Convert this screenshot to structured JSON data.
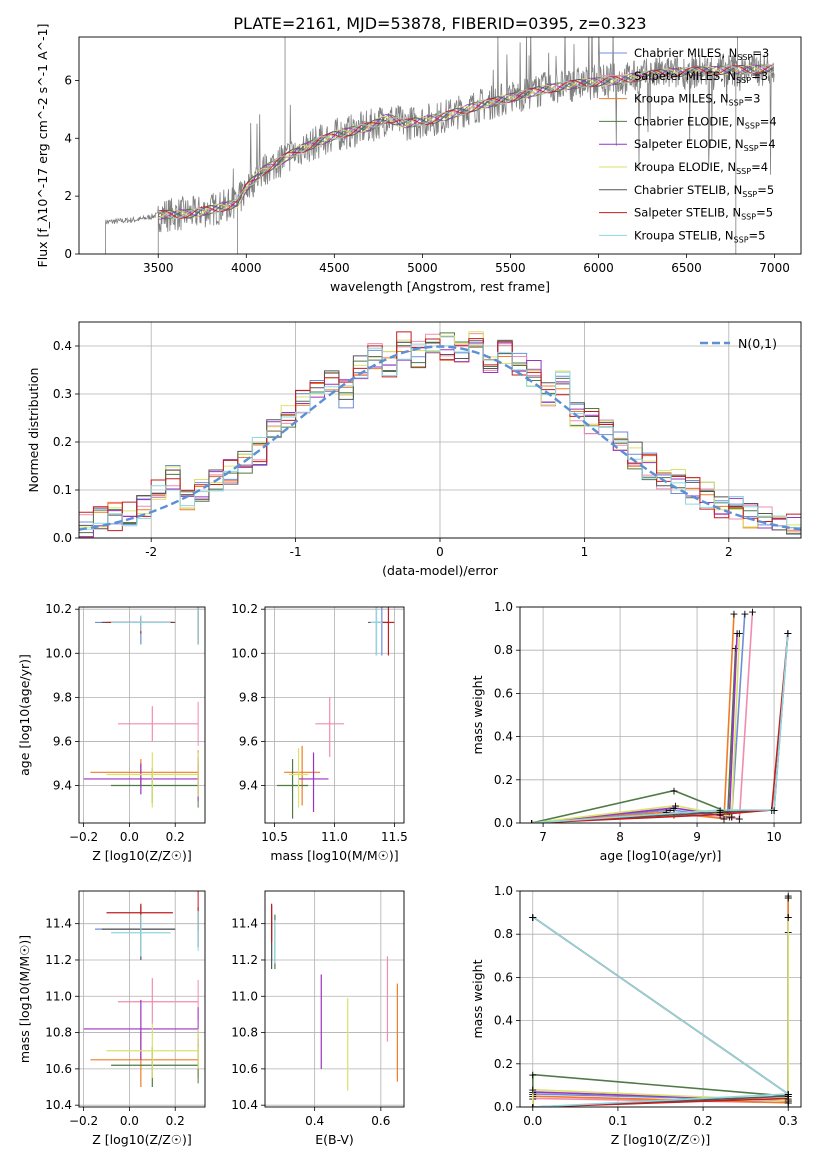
{
  "figure_title": "PLATE=2161, MJD=53878, FIBERID=0395, z=0.323",
  "colors": {
    "Chabrier MILES": "#6f8ed8",
    "Salpeter MILES": "#f08caf",
    "Kroupa MILES": "#f07b27",
    "Chabrier ELODIE": "#4f7a45",
    "Salpeter ELODIE": "#9a32c2",
    "Kroupa ELODIE": "#d9e26a",
    "Chabrier STELIB": "#555555",
    "Salpeter STELIB": "#c11e1e",
    "Kroupa STELIB": "#8fd6df",
    "data_gray": "#808080"
  },
  "legend_spectrum": [
    "Chabrier MILES, N_SSP=3",
    "Salpeter MILES, N_SSP=3",
    "Kroupa MILES, N_SSP=3",
    "Chabrier ELODIE, N_SSP=4",
    "Salpeter ELODIE, N_SSP=4",
    "Kroupa ELODIE, N_SSP=4",
    "Chabrier STELIB, N_SSP=5",
    "Salpeter STELIB, N_SSP=5",
    "Kroupa STELIB, N_SSP=5"
  ],
  "chart_data": [
    {
      "id": "spectrum",
      "type": "line",
      "xlabel": "wavelength [Angstrom, rest frame]",
      "ylabel": "Flux [f_λ10^-17 erg cm^-2 s^-1 A^-1]",
      "xlim": [
        3050,
        7150
      ],
      "ylim": [
        0,
        7.5
      ],
      "xticks": [
        3500,
        4000,
        4500,
        5000,
        5500,
        6000,
        6500,
        7000
      ],
      "yticks": [
        0,
        2,
        4,
        6
      ],
      "continuum": {
        "x": [
          3200,
          3400,
          3500,
          3700,
          3850,
          3950,
          4000,
          4100,
          4300,
          4500,
          4700,
          4800,
          4900,
          5100,
          5300,
          5500,
          5700,
          5900,
          6100,
          6300,
          6500,
          6700,
          7000
        ],
        "y": [
          1.1,
          1.2,
          1.35,
          1.4,
          1.6,
          1.75,
          2.3,
          2.9,
          3.6,
          4.1,
          4.4,
          4.7,
          4.5,
          4.7,
          5.1,
          5.4,
          5.7,
          5.9,
          6.0,
          6.2,
          6.3,
          6.35,
          6.4
        ]
      },
      "grid": false,
      "legend_position": "top-right"
    },
    {
      "id": "residual-histogram",
      "type": "step",
      "xlabel": "(data-model)/error",
      "ylabel": "Normed distribution",
      "xlim": [
        -2.5,
        2.5
      ],
      "ylim": [
        0,
        0.45
      ],
      "xticks": [
        -2,
        -1,
        0,
        1,
        2
      ],
      "yticks": [
        0.0,
        0.1,
        0.2,
        0.3,
        0.4
      ],
      "bin_edges": [
        -2.5,
        -2.4,
        -2.3,
        -2.2,
        -2.1,
        -2.0,
        -1.9,
        -1.8,
        -1.7,
        -1.6,
        -1.5,
        -1.4,
        -1.3,
        -1.2,
        -1.1,
        -1.0,
        -0.9,
        -0.8,
        -0.7,
        -0.6,
        -0.5,
        -0.4,
        -0.3,
        -0.2,
        -0.1,
        0.0,
        0.1,
        0.2,
        0.3,
        0.4,
        0.5,
        0.6,
        0.7,
        0.8,
        0.9,
        1.0,
        1.1,
        1.2,
        1.3,
        1.4,
        1.5,
        1.6,
        1.7,
        1.8,
        1.9,
        2.0,
        2.1,
        2.2,
        2.3,
        2.4,
        2.5
      ],
      "base_density": [
        0.03,
        0.04,
        0.045,
        0.05,
        0.06,
        0.1,
        0.13,
        0.08,
        0.1,
        0.12,
        0.14,
        0.16,
        0.18,
        0.22,
        0.25,
        0.28,
        0.3,
        0.33,
        0.3,
        0.35,
        0.38,
        0.36,
        0.4,
        0.38,
        0.41,
        0.4,
        0.38,
        0.4,
        0.37,
        0.39,
        0.36,
        0.34,
        0.3,
        0.32,
        0.26,
        0.24,
        0.22,
        0.2,
        0.17,
        0.15,
        0.13,
        0.12,
        0.1,
        0.09,
        0.07,
        0.06,
        0.05,
        0.04,
        0.03,
        0.03
      ],
      "gaussian_label": "N(0,1)",
      "grid": true,
      "legend_position": "top-right"
    },
    {
      "id": "age-vs-Z",
      "type": "errorbar",
      "xlabel": "Z [log10(Z/Z☉)]",
      "ylabel": "age [log10(age/yr)]",
      "xlim": [
        -0.22,
        0.33
      ],
      "ylim": [
        9.23,
        10.21
      ],
      "xticks": [
        -0.2,
        0.0,
        0.2
      ],
      "xtick_labels": [
        "−0.2",
        "0.0",
        "0.2"
      ],
      "yticks": [
        9.4,
        9.6,
        9.8,
        10.0,
        10.2
      ],
      "grid": true
    },
    {
      "id": "age-vs-mass",
      "type": "errorbar",
      "xlabel": "mass [log10(M/M☉)]",
      "ylabel": "",
      "xlim": [
        10.42,
        11.58
      ],
      "ylim": [
        9.23,
        10.21
      ],
      "xticks": [
        10.5,
        11.0,
        11.5
      ],
      "yticks": [
        9.4,
        9.6,
        9.8,
        10.0,
        10.2
      ],
      "grid": true
    },
    {
      "id": "massweight-vs-age",
      "type": "line",
      "xlabel": "age [log10(age/yr)]",
      "ylabel": "mass weight",
      "xlim": [
        6.7,
        10.35
      ],
      "ylim": [
        0.0,
        1.0
      ],
      "xticks": [
        7,
        8,
        9,
        10
      ],
      "yticks": [
        0.0,
        0.2,
        0.4,
        0.6,
        0.8,
        1.0
      ],
      "grid": true
    },
    {
      "id": "mass-vs-Z",
      "type": "errorbar",
      "xlabel": "Z [log10(Z/Z☉)]",
      "ylabel": "mass [log10(M/M☉)]",
      "xlim": [
        -0.22,
        0.33
      ],
      "ylim": [
        10.39,
        11.58
      ],
      "xticks": [
        -0.2,
        0.0,
        0.2
      ],
      "xtick_labels": [
        "−0.2",
        "0.0",
        "0.2"
      ],
      "yticks": [
        10.4,
        10.6,
        10.8,
        11.0,
        11.2,
        11.4
      ],
      "grid": true
    },
    {
      "id": "mass-vs-EBV",
      "type": "errorbar",
      "xlabel": "E(B-V)",
      "ylabel": "",
      "xlim": [
        0.25,
        0.67
      ],
      "ylim": [
        10.39,
        11.58
      ],
      "xticks": [
        0.4,
        0.6
      ],
      "yticks": [
        10.4,
        10.6,
        10.8,
        11.0,
        11.2,
        11.4
      ],
      "grid": true
    },
    {
      "id": "massweight-vs-Z",
      "type": "line",
      "xlabel": "Z [log10(Z/Z☉)]",
      "ylabel": "mass weight",
      "xlim": [
        -0.015,
        0.315
      ],
      "ylim": [
        0.0,
        1.0
      ],
      "xticks": [
        0.0,
        0.1,
        0.2,
        0.3
      ],
      "yticks": [
        0.0,
        0.2,
        0.4,
        0.6,
        0.8,
        1.0
      ],
      "grid": true
    }
  ],
  "fits": [
    {
      "model": "Chabrier MILES",
      "Z": [
        0.05,
        -0.15,
        0.2
      ],
      "age": [
        10.14,
        10.04,
        10.16
      ],
      "mass": [
        11.37,
        11.33,
        11.43
      ],
      "mass_age_err": [
        11.34,
        11.45
      ],
      "ebv": 0.27,
      "ebv_mass": [
        11.33,
        11.2,
        11.45
      ]
    },
    {
      "model": "Salpeter MILES",
      "Z": [
        0.1,
        -0.05,
        0.3
      ],
      "age": [
        9.68,
        9.6,
        9.76
      ],
      "mass": [
        10.97,
        10.85,
        11.1
      ],
      "mass_age_err": [
        10.84,
        11.08
      ],
      "ebv": 0.62,
      "ebv_mass": [
        10.97,
        10.75,
        11.22
      ]
    },
    {
      "model": "Kroupa MILES",
      "Z": [
        0.05,
        -0.17,
        0.3
      ],
      "age": [
        9.46,
        9.4,
        9.52
      ],
      "mass": [
        10.65,
        10.5,
        10.8
      ],
      "mass_age_err": [
        10.58,
        10.88
      ],
      "ebv": 0.65,
      "ebv_mass": [
        10.8,
        10.53,
        11.07
      ]
    },
    {
      "model": "Chabrier ELODIE",
      "Z": [
        0.1,
        -0.08,
        0.3
      ],
      "age": [
        9.4,
        9.32,
        9.48
      ],
      "mass": [
        10.62,
        10.5,
        10.72
      ],
      "mass_age_err": [
        10.52,
        10.78
      ],
      "ebv": 0.28,
      "ebv_mass": [
        11.33,
        11.15,
        11.45
      ]
    },
    {
      "model": "Salpeter ELODIE",
      "Z": [
        0.05,
        -0.2,
        0.3
      ],
      "age": [
        9.43,
        9.36,
        9.5
      ],
      "mass": [
        10.82,
        10.65,
        10.98
      ],
      "mass_age_err": [
        10.7,
        10.95
      ],
      "ebv": 0.42,
      "ebv_mass": [
        10.85,
        10.6,
        11.12
      ]
    },
    {
      "model": "Kroupa ELODIE",
      "Z": [
        0.1,
        -0.1,
        0.3
      ],
      "age": [
        9.45,
        9.3,
        9.55
      ],
      "mass": [
        10.7,
        10.55,
        10.85
      ],
      "mass_age_err": [
        10.62,
        10.78
      ],
      "ebv": 0.5,
      "ebv_mass": [
        10.75,
        10.48,
        10.99
      ]
    },
    {
      "model": "Chabrier STELIB",
      "Z": [
        0.05,
        -0.12,
        0.2
      ],
      "age": [
        10.14,
        10.1,
        10.17
      ],
      "mass": [
        11.37,
        11.2,
        11.5
      ],
      "mass_age_err": [
        11.28,
        11.42
      ],
      "ebv": 0.27,
      "ebv_mass": [
        11.35,
        11.15,
        11.5
      ]
    },
    {
      "model": "Salpeter STELIB",
      "Z": [
        0.05,
        -0.1,
        0.19
      ],
      "age": [
        10.14,
        10.09,
        10.16
      ],
      "mass": [
        11.46,
        11.38,
        11.51
      ],
      "mass_age_err": [
        11.4,
        11.5
      ],
      "ebv": 0.27,
      "ebv_mass": [
        11.45,
        11.3,
        11.51
      ]
    },
    {
      "model": "Kroupa STELIB",
      "Z": [
        0.05,
        -0.08,
        0.18
      ],
      "age": [
        10.14,
        10.1,
        10.17
      ],
      "mass": [
        11.35,
        11.22,
        11.45
      ],
      "mass_age_err": [
        11.3,
        11.4
      ],
      "ebv": 0.28,
      "ebv_mass": [
        11.3,
        11.18,
        11.42
      ]
    }
  ],
  "mass_weight_paths": [
    {
      "model": "Chabrier MILES",
      "age": [
        6.85,
        8.65,
        9.45,
        9.62
      ],
      "Z": [
        0,
        0,
        0.3,
        0.3
      ],
      "w": [
        0.0,
        0.06,
        0.03,
        0.97
      ]
    },
    {
      "model": "Salpeter MILES",
      "age": [
        6.85,
        8.7,
        9.55,
        9.72
      ],
      "Z": [
        0,
        0,
        0.3,
        0.3
      ],
      "w": [
        0.0,
        0.04,
        0.02,
        0.98
      ]
    },
    {
      "model": "Kroupa MILES",
      "age": [
        6.85,
        8.6,
        9.35,
        9.48
      ],
      "Z": [
        0,
        0,
        0.3,
        0.3
      ],
      "w": [
        0.0,
        0.05,
        0.02,
        0.97
      ]
    },
    {
      "model": "Chabrier ELODIE",
      "age": [
        6.85,
        8.7,
        9.4,
        9.5
      ],
      "Z": [
        0,
        0,
        0.3,
        0.3
      ],
      "w": [
        0.0,
        0.15,
        0.05,
        0.81
      ]
    },
    {
      "model": "Salpeter ELODIE",
      "age": [
        6.85,
        8.7,
        9.42,
        9.52
      ],
      "Z": [
        0,
        0,
        0.3,
        0.3
      ],
      "w": [
        0.0,
        0.07,
        0.03,
        0.88
      ]
    },
    {
      "model": "Kroupa ELODIE",
      "age": [
        6.85,
        8.72,
        9.45,
        9.55
      ],
      "Z": [
        0,
        0,
        0.3,
        0.3
      ],
      "w": [
        0.0,
        0.08,
        0.03,
        0.88
      ]
    },
    {
      "model": "Chabrier STELIB",
      "age": [
        6.85,
        9.3,
        10.0,
        10.18
      ],
      "Z": [
        0,
        0.3,
        0.3,
        0
      ],
      "w": [
        0.0,
        0.05,
        0.06,
        0.88
      ]
    },
    {
      "model": "Salpeter STELIB",
      "age": [
        6.85,
        9.3,
        9.97,
        10.18
      ],
      "Z": [
        0,
        0.3,
        0.3,
        0
      ],
      "w": [
        0.0,
        0.04,
        0.06,
        0.88
      ]
    },
    {
      "model": "Kroupa STELIB",
      "age": [
        6.85,
        9.3,
        10.0,
        10.18
      ],
      "Z": [
        0,
        0.3,
        0.3,
        0
      ],
      "w": [
        0.0,
        0.06,
        0.06,
        0.88
      ]
    }
  ]
}
